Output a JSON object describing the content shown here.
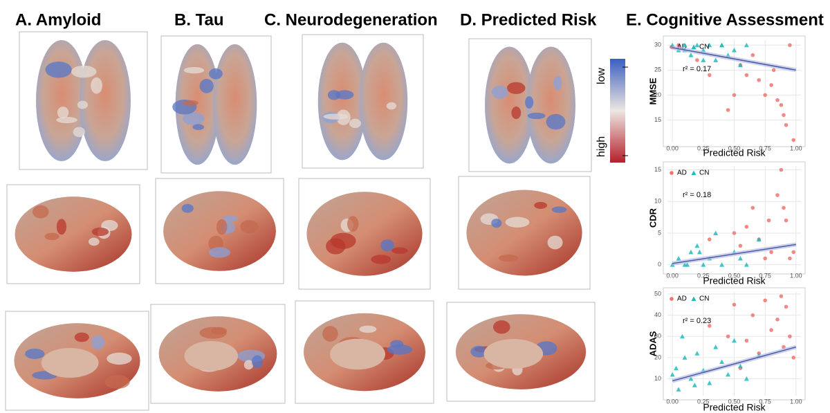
{
  "panel_titles": [
    "A.  Amyloid",
    "B.  Tau",
    "C.  Neurodegeneration",
    "D.  Predicted Risk",
    "E. Cognitive Assessment"
  ],
  "colorbar": {
    "top_label": "low",
    "bottom_label": "high"
  },
  "chart_data": [
    {
      "type": "scatter",
      "x_label": "Predicted Risk",
      "y_label": "MMSE",
      "annotation": "r² = 0.17",
      "legend": "upper left",
      "grid": true,
      "xlim": [
        -0.04,
        1.04
      ],
      "ylim": [
        10.5,
        31
      ],
      "xticks": [
        {
          "value": 0,
          "label": "0.00"
        },
        {
          "value": 0.25,
          "label": "0.25"
        },
        {
          "value": 0.5,
          "label": "0.50"
        },
        {
          "value": 0.75,
          "label": "0.75"
        },
        {
          "value": 1,
          "label": "1.00"
        }
      ],
      "yticks": [
        15,
        20,
        25,
        30
      ],
      "series": [
        {
          "name": "AD",
          "color": "#f07470",
          "marker": "circle",
          "x": [
            0.05,
            0.2,
            0.3,
            0.45,
            0.5,
            0.55,
            0.65,
            0.7,
            0.75,
            0.8,
            0.82,
            0.85,
            0.9,
            0.92,
            0.95,
            0.98,
            0.6,
            0.88
          ],
          "values": [
            30,
            27,
            24,
            17,
            20,
            26,
            28,
            23,
            20,
            22,
            25,
            19,
            16,
            14,
            30,
            11,
            24,
            18
          ]
        },
        {
          "name": "CN",
          "color": "#1fbcbd",
          "marker": "triangle",
          "x": [
            0,
            0.05,
            0.1,
            0.15,
            0.2,
            0.25,
            0.3,
            0.35,
            0.4,
            0.45,
            0.5,
            0.55,
            0.6,
            0.25,
            0.1,
            0.4
          ],
          "values": [
            30,
            29,
            30,
            28,
            30,
            29,
            30,
            27,
            30,
            28,
            29,
            26,
            30,
            27,
            29,
            30
          ]
        }
      ],
      "trendline": {
        "color": "#4a5aa8",
        "x": [
          0,
          1
        ],
        "values": [
          29.5,
          25
        ]
      }
    },
    {
      "type": "scatter",
      "x_label": "Predicted Risk",
      "y_label": "CDR",
      "annotation": "r² = 0.18",
      "legend": "upper left",
      "grid": true,
      "xlim": [
        -0.04,
        1.04
      ],
      "ylim": [
        -0.8,
        15.6
      ],
      "xticks": [
        {
          "value": 0,
          "label": "0.00"
        },
        {
          "value": 0.25,
          "label": "0.25"
        },
        {
          "value": 0.5,
          "label": "0.50"
        },
        {
          "value": 0.75,
          "label": "0.75"
        },
        {
          "value": 1,
          "label": "1.00"
        }
      ],
      "yticks": [
        0,
        5,
        10,
        15
      ],
      "series": [
        {
          "name": "AD",
          "color": "#f07470",
          "marker": "circle",
          "x": [
            0.3,
            0.5,
            0.6,
            0.65,
            0.7,
            0.75,
            0.8,
            0.85,
            0.88,
            0.9,
            0.92,
            0.95,
            0.98,
            0.55,
            0.78
          ],
          "values": [
            4,
            5,
            6,
            9,
            4,
            1,
            2,
            11,
            15,
            9,
            7,
            1,
            2,
            3,
            7
          ]
        },
        {
          "name": "CN",
          "color": "#1fbcbd",
          "marker": "triangle",
          "x": [
            0,
            0.05,
            0.1,
            0.15,
            0.2,
            0.25,
            0.3,
            0.35,
            0.4,
            0.5,
            0.55,
            0.6,
            0.7,
            0.12,
            0.22
          ],
          "values": [
            0,
            1,
            0,
            2,
            3,
            0,
            1,
            5,
            0,
            2,
            1,
            0,
            4,
            0,
            2
          ]
        }
      ],
      "trendline": {
        "color": "#4a5aa8",
        "x": [
          0,
          1
        ],
        "values": [
          0.2,
          3.2
        ]
      }
    },
    {
      "type": "scatter",
      "x_label": "Predicted Risk",
      "y_label": "ADAS",
      "annotation": "r² = 0.23",
      "legend": "upper left",
      "grid": true,
      "xlim": [
        -0.04,
        1.04
      ],
      "ylim": [
        2,
        51
      ],
      "xticks": [
        {
          "value": 0,
          "label": "0.00"
        },
        {
          "value": 0.25,
          "label": "0.25"
        },
        {
          "value": 0.5,
          "label": "0.50"
        },
        {
          "value": 0.75,
          "label": "0.75"
        },
        {
          "value": 1,
          "label": "1.00"
        }
      ],
      "yticks": [
        10,
        20,
        30,
        40,
        50
      ],
      "series": [
        {
          "name": "AD",
          "color": "#f07470",
          "marker": "circle",
          "x": [
            0.3,
            0.45,
            0.5,
            0.6,
            0.65,
            0.7,
            0.75,
            0.8,
            0.85,
            0.88,
            0.9,
            0.92,
            0.95,
            0.98,
            0.55
          ],
          "values": [
            35,
            30,
            45,
            28,
            40,
            22,
            47,
            33,
            38,
            49,
            25,
            44,
            30,
            20,
            15
          ]
        },
        {
          "name": "CN",
          "color": "#1fbcbd",
          "marker": "triangle",
          "x": [
            0,
            0.03,
            0.05,
            0.1,
            0.15,
            0.2,
            0.25,
            0.3,
            0.35,
            0.4,
            0.45,
            0.5,
            0.55,
            0.6,
            0.7,
            0.08,
            0.18
          ],
          "values": [
            12,
            15,
            5,
            20,
            10,
            22,
            14,
            8,
            25,
            18,
            12,
            28,
            16,
            10,
            21,
            30,
            7
          ]
        }
      ],
      "trendline": {
        "color": "#4a5aa8",
        "x": [
          0,
          1
        ],
        "values": [
          9,
          25
        ]
      }
    }
  ]
}
